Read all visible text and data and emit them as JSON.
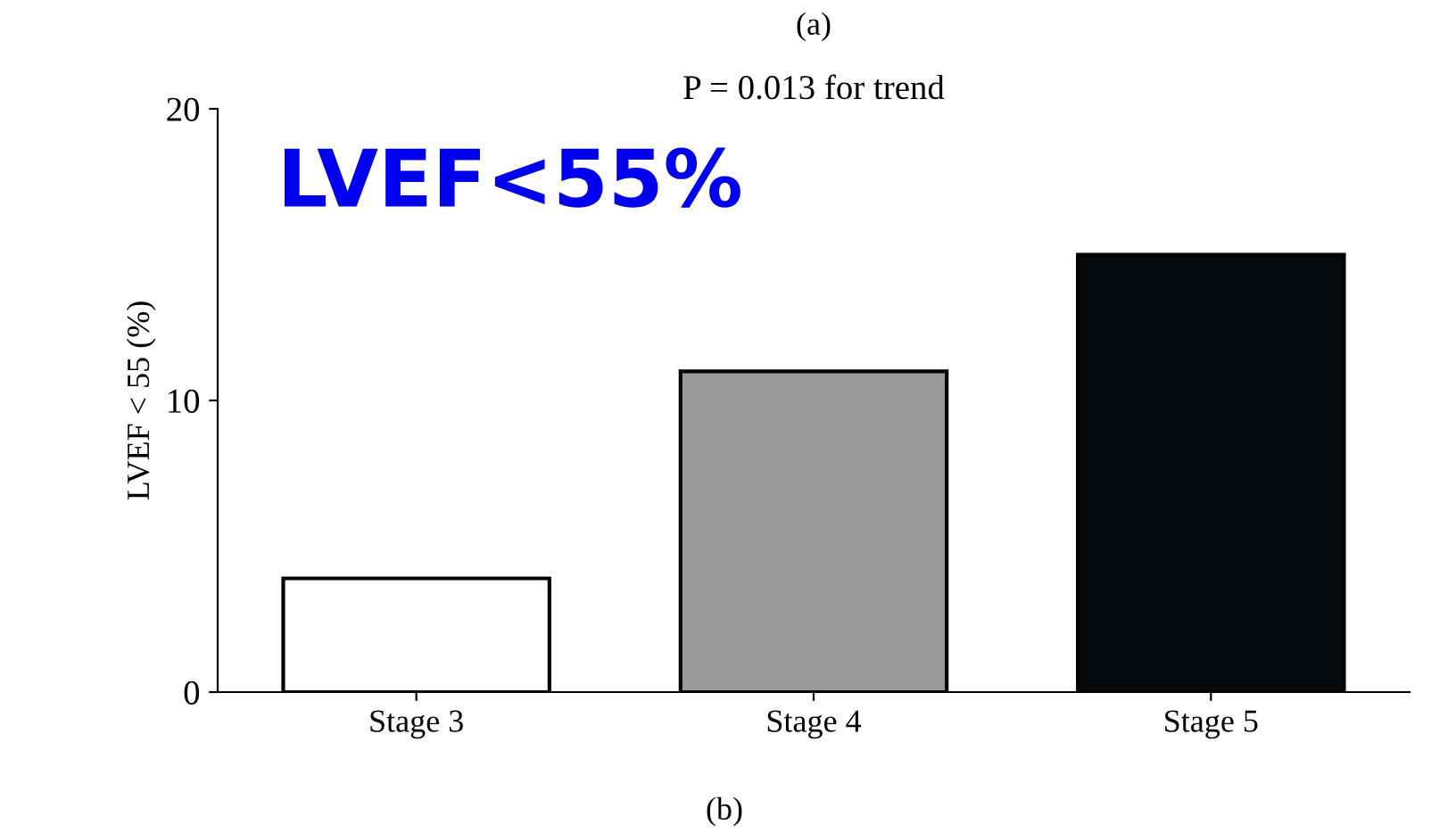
{
  "chart_data": {
    "type": "bar",
    "title": "(a)",
    "subtitle": "P = 0.013 for trend",
    "ylabel": "LVEF < 55 (%)",
    "categories": [
      "Stage 3",
      "Stage 4",
      "Stage 5"
    ],
    "values": [
      3.9,
      11.0,
      15.0
    ],
    "colors": [
      "#ffffff",
      "#9a9a9a",
      "#050a0c"
    ],
    "ylim": [
      0,
      20
    ],
    "yticks": [
      0,
      10,
      20
    ],
    "grid": false,
    "annotations": [
      "LVEF<55%",
      "(b)"
    ]
  }
}
